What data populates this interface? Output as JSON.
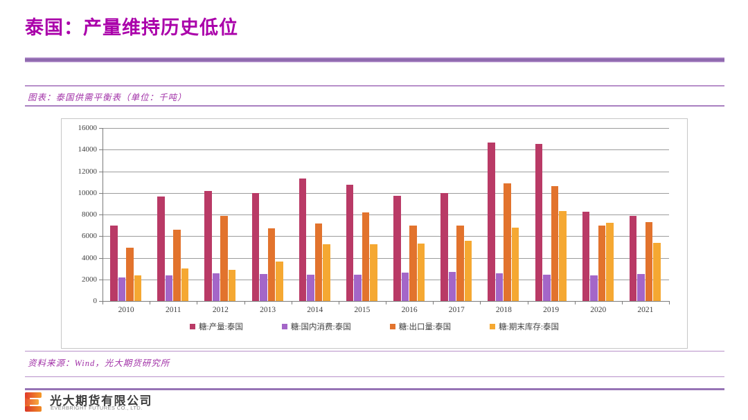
{
  "page": {
    "title": "泰国：产量维持历史低位",
    "chart_caption": "图表：泰国供需平衡表（单位：千吨）",
    "source": "资料来源：Wind，光大期货研究所",
    "logo": {
      "company_cn": "光大期货有限公司",
      "company_en": "EVERBRIGHT FUTURES CO., LTD."
    },
    "colors": {
      "title_magenta": "#aa00aa",
      "accent_purple": "#8d68ae",
      "rule_purple": "#b78fc9",
      "production": "#b93a66",
      "consumption": "#a466c8",
      "export": "#e2732d",
      "stocks": "#f5a832"
    }
  },
  "chart_data": {
    "type": "bar",
    "title": "泰国供需平衡表（单位：千吨）",
    "xlabel": "",
    "ylabel": "",
    "ylim": [
      0,
      16000
    ],
    "ytick_step": 2000,
    "grid": true,
    "legend_position": "bottom",
    "categories": [
      "2010",
      "2011",
      "2012",
      "2013",
      "2014",
      "2015",
      "2016",
      "2017",
      "2018",
      "2019",
      "2020",
      "2021"
    ],
    "series": [
      {
        "name": "糖:产量:泰国",
        "color": "#b93a66",
        "values": [
          6950,
          9650,
          10200,
          10000,
          11300,
          10750,
          9700,
          10000,
          14650,
          14500,
          8250,
          7850
        ]
      },
      {
        "name": "糖:国内消费:泰国",
        "color": "#a466c8",
        "values": [
          2200,
          2400,
          2550,
          2500,
          2450,
          2450,
          2650,
          2700,
          2550,
          2450,
          2400,
          2500
        ]
      },
      {
        "name": "糖:出口量:泰国",
        "color": "#e2732d",
        "values": [
          4950,
          6600,
          7900,
          6700,
          7150,
          8200,
          7000,
          7000,
          10850,
          10600,
          7000,
          7300
        ]
      },
      {
        "name": "糖:期末库存:泰国",
        "color": "#f5a832",
        "values": [
          2350,
          3000,
          2850,
          3650,
          5250,
          5250,
          5300,
          5600,
          6800,
          8300,
          7250,
          5350
        ]
      }
    ]
  }
}
